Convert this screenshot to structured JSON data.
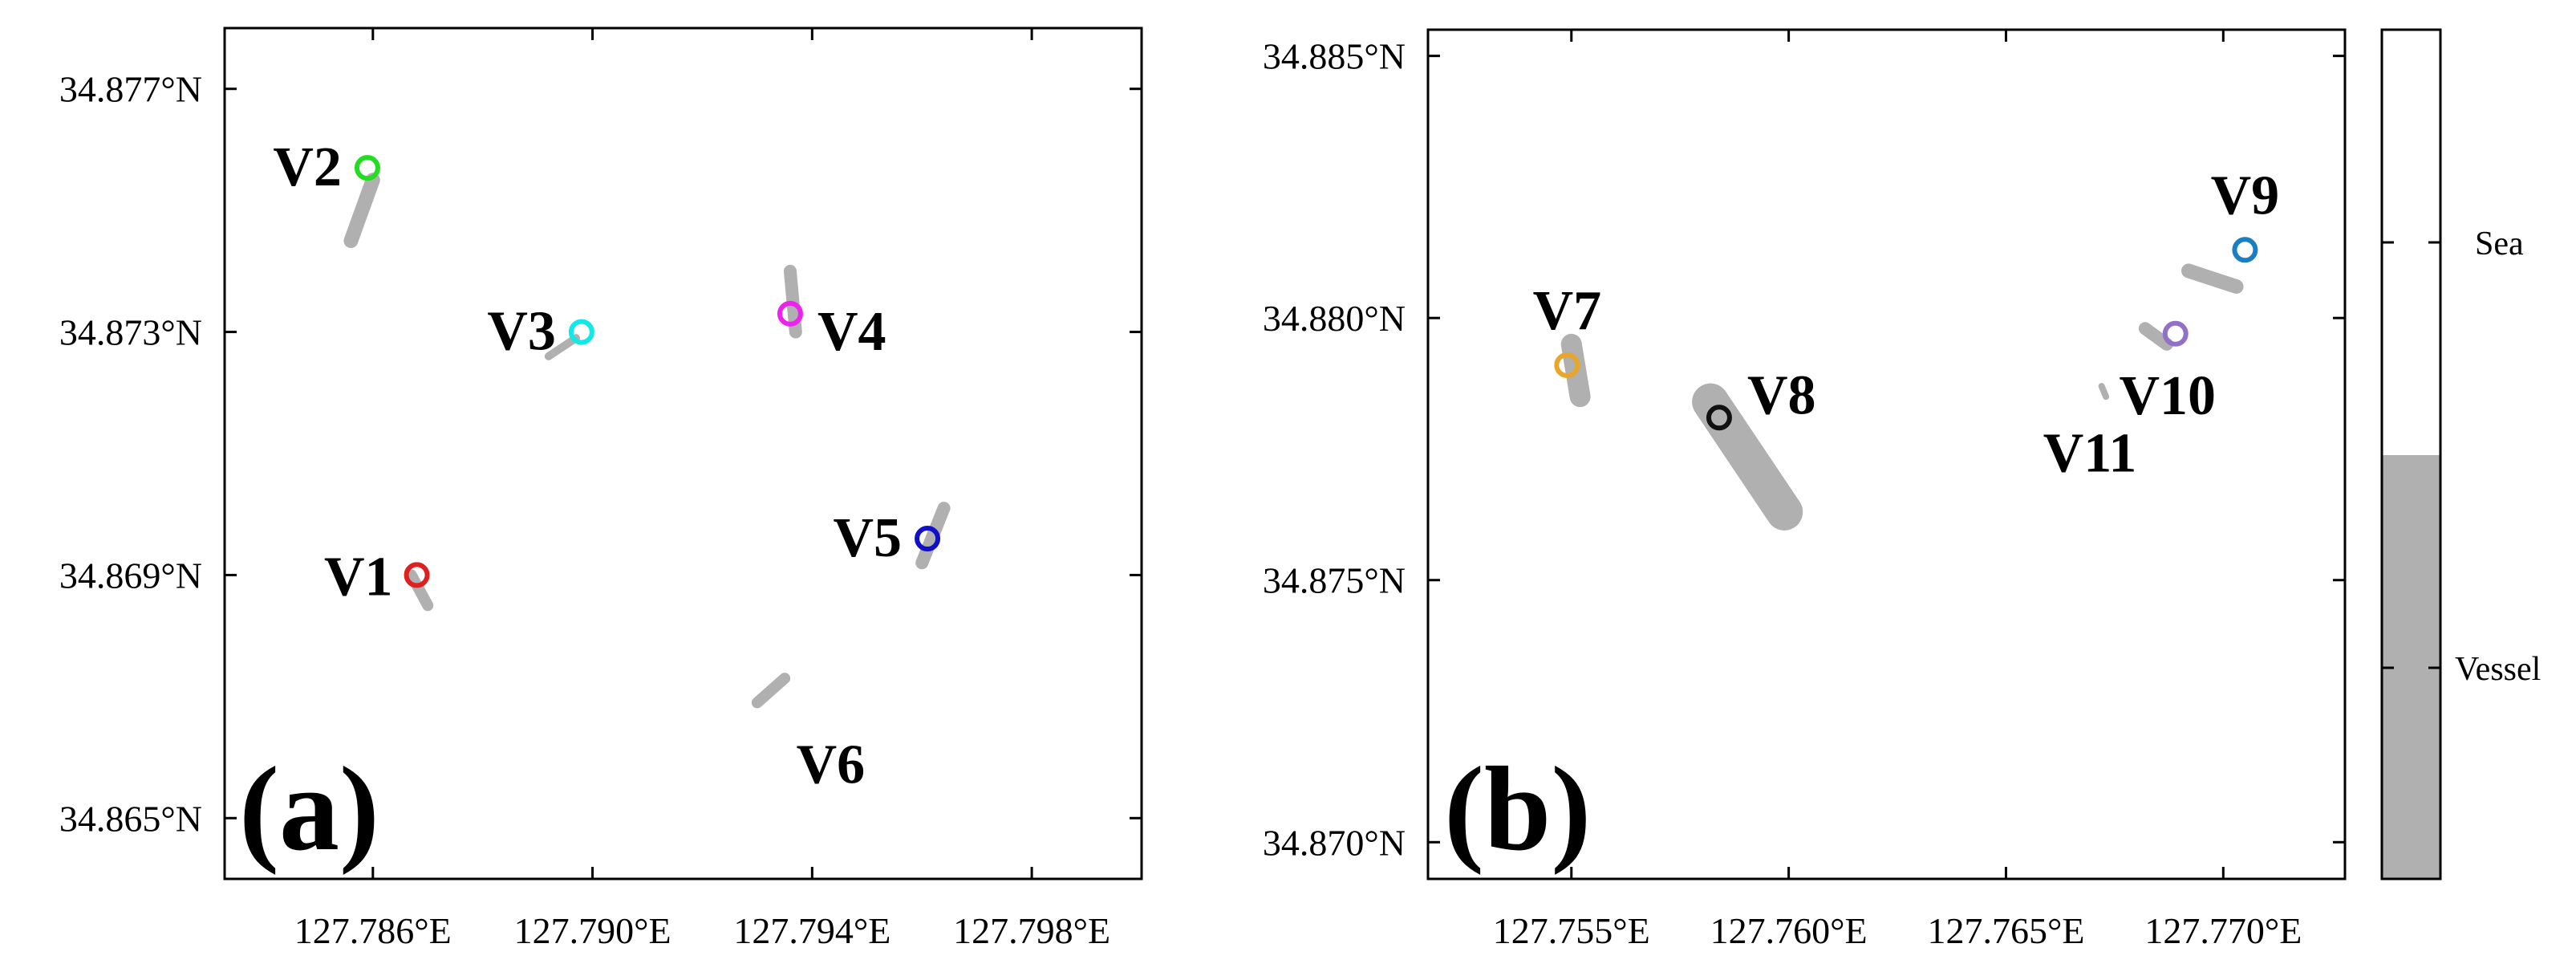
{
  "chart_data": [
    {
      "type": "scatter",
      "panel_label": "(a)",
      "xlim": [
        127.7833,
        127.8
      ],
      "ylim": [
        34.864,
        34.878
      ],
      "x_ticks": [
        127.786,
        127.79,
        127.794,
        127.798
      ],
      "x_tick_labels": [
        "127.786°E",
        "127.790°E",
        "127.794°E",
        "127.798°E"
      ],
      "y_ticks": [
        34.865,
        34.869,
        34.873,
        34.877
      ],
      "y_tick_labels": [
        "34.865°N",
        "34.869°N",
        "34.873°N",
        "34.877°N"
      ],
      "vessel_color": "#b0b0b0",
      "vessels": [
        {
          "label": "V1",
          "x": 127.7868,
          "y": 34.869,
          "color": "#e02020",
          "label_side": "left",
          "footprint": [
            [
              127.7867,
              34.869
            ],
            [
              127.787,
              34.8685
            ]
          ],
          "width": 14
        },
        {
          "label": "V2",
          "x": 127.7859,
          "y": 34.8757,
          "color": "#22dd22",
          "label_side": "left",
          "footprint": [
            [
              127.786,
              34.8755
            ],
            [
              127.7856,
              34.8745
            ]
          ],
          "width": 18
        },
        {
          "label": "V3",
          "x": 127.7898,
          "y": 34.873,
          "color": "#11e8e8",
          "label_side": "left",
          "footprint": [
            [
              127.7897,
              34.8729
            ],
            [
              127.7892,
              34.8726
            ]
          ],
          "width": 10
        },
        {
          "label": "V4",
          "x": 127.7936,
          "y": 34.8733,
          "color": "#ee22ee",
          "label_side": "right",
          "footprint": [
            [
              127.7936,
              34.874
            ],
            [
              127.7937,
              34.873
            ]
          ],
          "width": 16
        },
        {
          "label": "V5",
          "x": 127.7961,
          "y": 34.8696,
          "color": "#1010c8",
          "label_side": "left",
          "footprint": [
            [
              127.7964,
              34.8701
            ],
            [
              127.796,
              34.8692
            ]
          ],
          "width": 16
        },
        {
          "label": "V6",
          "x": 127.7932,
          "y": 34.8665,
          "color": null,
          "label_side": "right",
          "footprint": [
            [
              127.7935,
              34.8673
            ],
            [
              127.793,
              34.8669
            ]
          ],
          "width": 14
        }
      ]
    },
    {
      "type": "scatter",
      "panel_label": "(b)",
      "xlim": [
        127.7517,
        127.7728
      ],
      "ylim": [
        34.8693,
        34.8855
      ],
      "x_ticks": [
        127.755,
        127.76,
        127.765,
        127.77
      ],
      "x_tick_labels": [
        "127.755°E",
        "127.760°E",
        "127.765°E",
        "127.770°E"
      ],
      "y_ticks": [
        34.87,
        34.875,
        34.88,
        34.885
      ],
      "y_tick_labels": [
        "34.870°N",
        "34.875°N",
        "34.880°N",
        "34.885°N"
      ],
      "vessel_color": "#b0b0b0",
      "vessels": [
        {
          "label": "V7",
          "x": 127.7549,
          "y": 34.8791,
          "color": "#e8a62c",
          "label_side": "above",
          "footprint": [
            [
              127.755,
              34.8795
            ],
            [
              127.7552,
              34.8785
            ]
          ],
          "width": 26
        },
        {
          "label": "V8",
          "x": 127.7584,
          "y": 34.8781,
          "color": "#111111",
          "label_side": "right",
          "footprint": [
            [
              127.7582,
              34.8784
            ],
            [
              127.7599,
              34.8763
            ]
          ],
          "width": 46
        },
        {
          "label": "V9",
          "x": 127.7705,
          "y": 34.8813,
          "color": "#1a7ec2",
          "label_side": "above",
          "footprint": [
            [
              127.7692,
              34.8809
            ],
            [
              127.7703,
              34.8806
            ]
          ],
          "width": 18
        },
        {
          "label": "V10",
          "x": 127.7689,
          "y": 34.8797,
          "color": "#9370c8",
          "label_side": "below",
          "footprint": [
            [
              127.7682,
              34.8798
            ],
            [
              127.7687,
              34.8795
            ]
          ],
          "width": 16
        },
        {
          "label": "V11",
          "x": 127.7673,
          "y": 34.8786,
          "color": null,
          "label_side": "below",
          "footprint": [
            [
              127.7672,
              34.8787
            ],
            [
              127.7673,
              34.8785
            ]
          ],
          "width": 8
        }
      ]
    }
  ],
  "colorbar": {
    "categories": [
      {
        "label": "Sea",
        "color": "#ffffff"
      },
      {
        "label": "Vessel",
        "color": "#b0b0b0"
      }
    ],
    "split": 0.5
  }
}
